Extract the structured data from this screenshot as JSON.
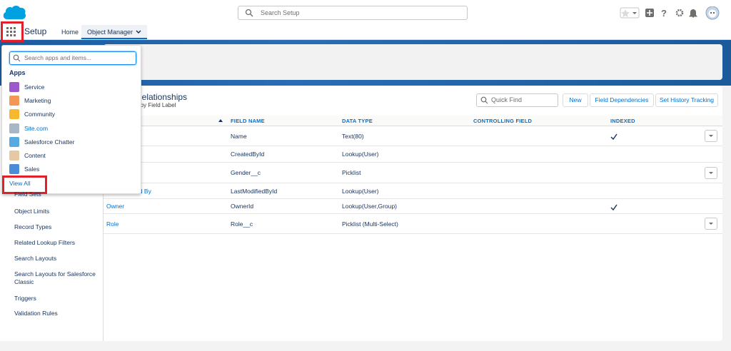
{
  "header": {
    "search_placeholder": "Search Setup"
  },
  "nav": {
    "app_name": "Setup",
    "tabs": [
      "Home",
      "Object Manager"
    ]
  },
  "sidebar": {
    "items": [
      "Field Sets",
      "Object Limits",
      "Record Types",
      "Related Lookup Filters",
      "Search Layouts",
      "Search Layouts for Salesforce Classic",
      "Triggers",
      "Validation Rules"
    ]
  },
  "panel": {
    "title": "Relationships",
    "subtitle": "d by Field Label",
    "quick_find": "Quick Find",
    "buttons": [
      "New",
      "Field Dependencies",
      "Set History Tracking"
    ]
  },
  "table": {
    "columns": [
      "FIELD NAME",
      "DATA TYPE",
      "CONTROLLING FIELD",
      "INDEXED"
    ],
    "rows": [
      {
        "label": null,
        "field_name": "Name",
        "data_type": "Text(80)",
        "indexed": true
      },
      {
        "label": null,
        "field_name": "CreatedById",
        "data_type": "Lookup(User)",
        "indexed": false
      },
      {
        "label": null,
        "field_name": "Gender__c",
        "data_type": "Picklist",
        "indexed": false
      },
      {
        "label": "Last Modified By",
        "field_name": "LastModifiedById",
        "data_type": "Lookup(User)",
        "indexed": false
      },
      {
        "label": "Owner",
        "field_name": "OwnerId",
        "data_type": "Lookup(User,Group)",
        "indexed": true
      },
      {
        "label": "Role",
        "field_name": "Role__c",
        "data_type": "Picklist (Multi-Select)",
        "indexed": false
      }
    ]
  },
  "app_launcher": {
    "search_placeholder": "Search apps and items...",
    "heading": "Apps",
    "apps": [
      "Service",
      "Marketing",
      "Community",
      "Site.com",
      "Salesforce Chatter",
      "Content",
      "Sales"
    ],
    "view_all": "View All"
  }
}
